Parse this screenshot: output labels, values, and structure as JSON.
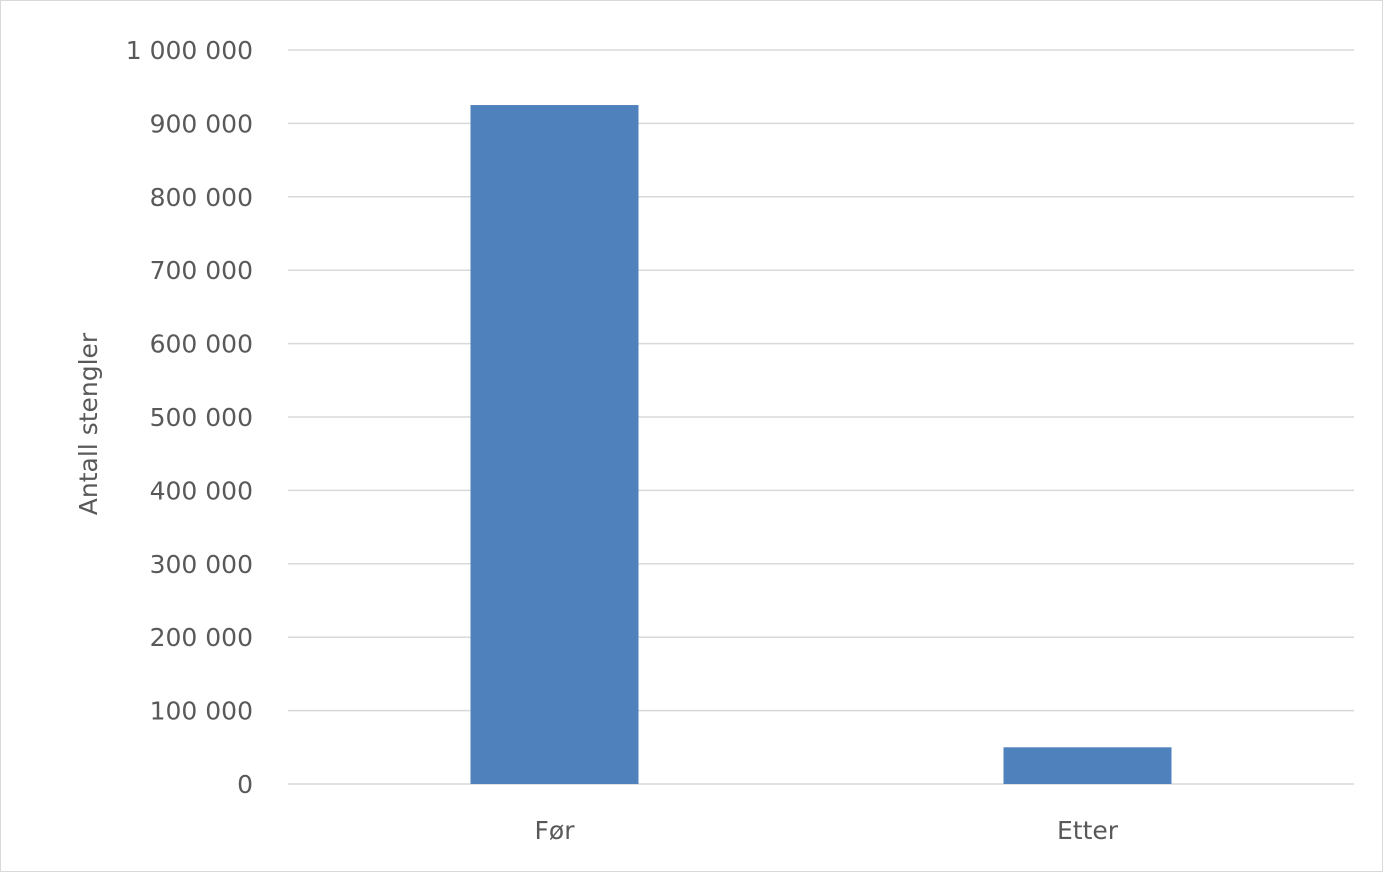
{
  "chart_data": {
    "type": "bar",
    "categories": [
      "Før",
      "Etter"
    ],
    "series": [
      {
        "values": [
          925000,
          50000
        ],
        "color": "#4f81bd"
      }
    ],
    "ylabel": "Antall stengler",
    "xlabel": "",
    "ylim": [
      0,
      1000000
    ],
    "ytick_labels": [
      "0",
      "100 000",
      "200 000",
      "300 000",
      "400 000",
      "500 000",
      "600 000",
      "700 000",
      "800 000",
      "900 000",
      "1 000 000"
    ],
    "grid": true,
    "legend": "none"
  }
}
